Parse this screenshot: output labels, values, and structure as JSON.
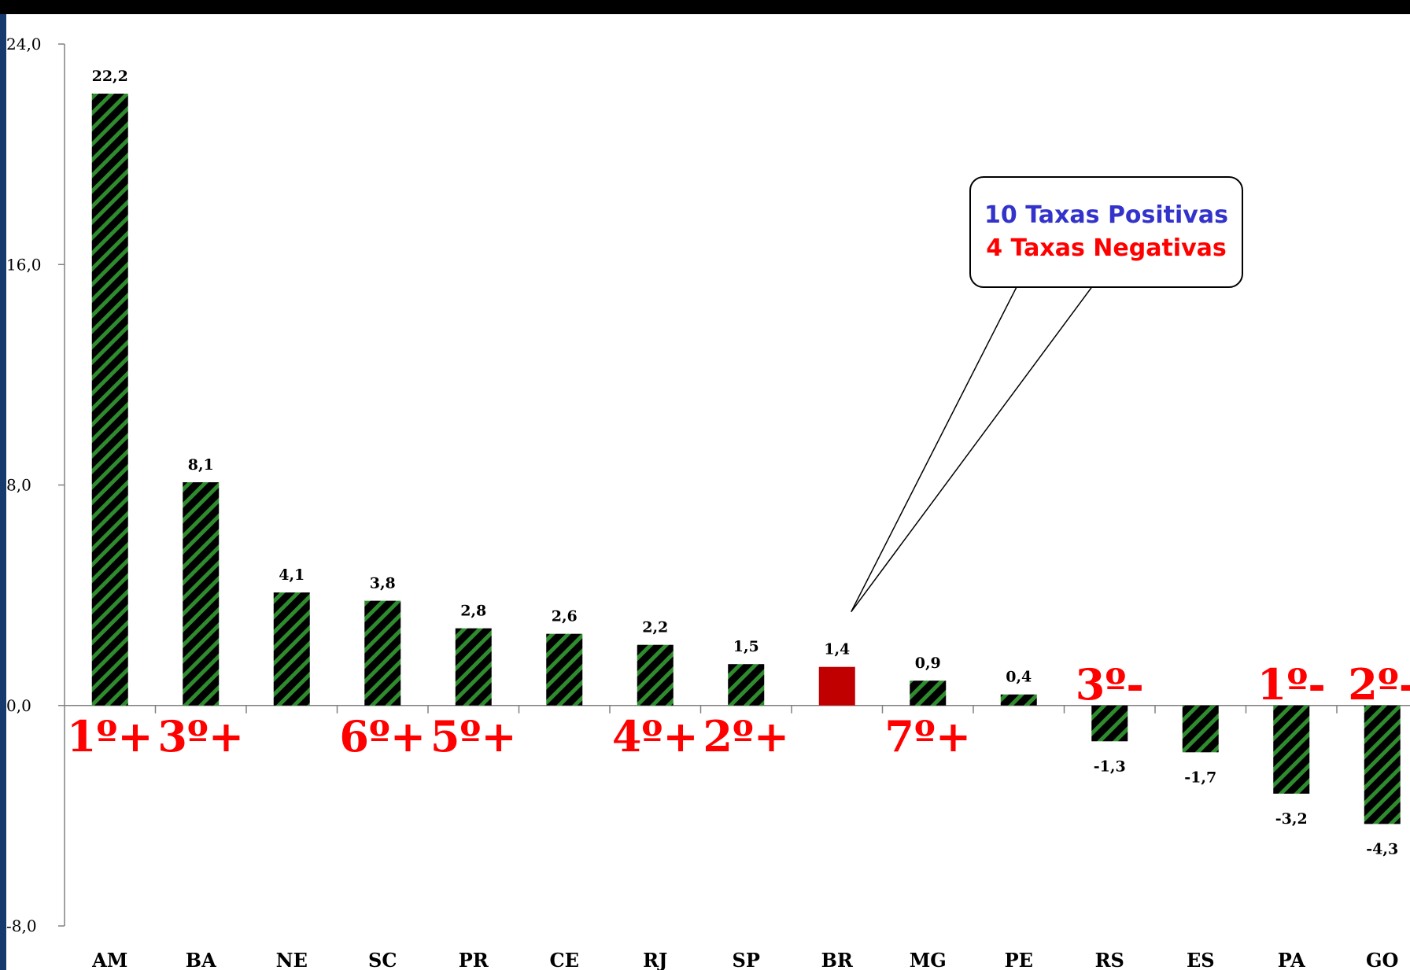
{
  "colors": {
    "bar_hatch": "#2e8b2e",
    "bar_base": "#000000",
    "highlight": "#c00000",
    "rank": "#ff0000",
    "callout_positive": "#3333cc",
    "callout_negative": "#ff0000"
  },
  "chart_data": {
    "type": "bar",
    "categories": [
      "AM",
      "BA",
      "NE",
      "SC",
      "PR",
      "CE",
      "RJ",
      "SP",
      "BR",
      "MG",
      "PE",
      "RS",
      "ES",
      "PA",
      "GO"
    ],
    "values": [
      22.2,
      8.1,
      4.1,
      3.8,
      2.8,
      2.6,
      2.2,
      1.5,
      1.4,
      0.9,
      0.4,
      -1.3,
      -1.7,
      -3.2,
      -4.3
    ],
    "value_labels": [
      "22,2",
      "8,1",
      "4,1",
      "3,8",
      "2,8",
      "2,6",
      "2,2",
      "1,5",
      "1,4",
      "0,9",
      "0,4",
      "-1,3",
      "-1,7",
      "-3,2",
      "-4,3"
    ],
    "highlight": [
      "BR"
    ],
    "ylim": [
      -8,
      24
    ],
    "yticks": [
      -8,
      0,
      8,
      16,
      24
    ],
    "ytick_labels": [
      "-8,0",
      "0,0",
      "8,0",
      "16,0",
      "24,0"
    ],
    "xlabel": "",
    "ylabel": "",
    "title": "",
    "rank_labels": [
      {
        "category": "AM",
        "text": "1º+"
      },
      {
        "category": "BA",
        "text": "3º+"
      },
      {
        "category": "SC",
        "text": "6º+"
      },
      {
        "category": "PR",
        "text": "5º+"
      },
      {
        "category": "RJ",
        "text": "4º+"
      },
      {
        "category": "SP",
        "text": "2º+"
      },
      {
        "category": "MG",
        "text": "7º+"
      },
      {
        "category": "RS",
        "text": "3º-"
      },
      {
        "category": "PA",
        "text": "1º-"
      },
      {
        "category": "GO",
        "text": "2º-"
      }
    ],
    "callout": {
      "line1": "10 Taxas Positivas",
      "line2": "4 Taxas Negativas",
      "points_to": "BR"
    }
  }
}
